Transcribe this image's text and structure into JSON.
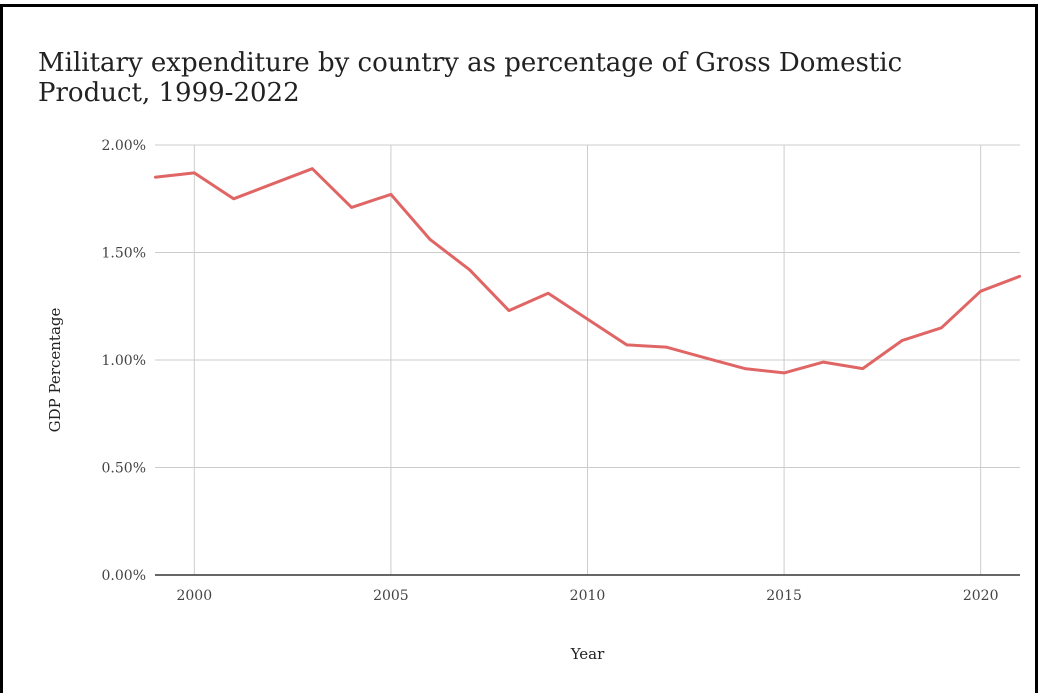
{
  "chart_data": {
    "type": "line",
    "title": "Military expenditure by country as percentage of Gross Domestic Product, 1999-2022",
    "xlabel": "Year",
    "ylabel": "GDP Percentage",
    "xlim": [
      1999,
      2021
    ],
    "ylim": [
      0,
      2.0
    ],
    "grid": true,
    "y_ticks": [
      "0.00%",
      "0.50%",
      "1.00%",
      "1.50%",
      "2.00%"
    ],
    "x_ticks": [
      "2000",
      "2005",
      "2010",
      "2015",
      "2020"
    ],
    "line_color": "#e06666",
    "series": [
      {
        "x": [
          1999,
          2000,
          2001,
          2002,
          2003,
          2004,
          2005,
          2006,
          2007,
          2008,
          2009,
          2010,
          2011,
          2012,
          2013,
          2014,
          2015,
          2016,
          2017,
          2018,
          2019,
          2020,
          2021
        ],
        "values": [
          1.85,
          1.87,
          1.75,
          1.82,
          1.89,
          1.71,
          1.77,
          1.56,
          1.42,
          1.23,
          1.31,
          1.19,
          1.07,
          1.06,
          1.01,
          0.96,
          0.94,
          0.99,
          0.96,
          1.09,
          1.15,
          1.32,
          1.39
        ]
      }
    ]
  }
}
